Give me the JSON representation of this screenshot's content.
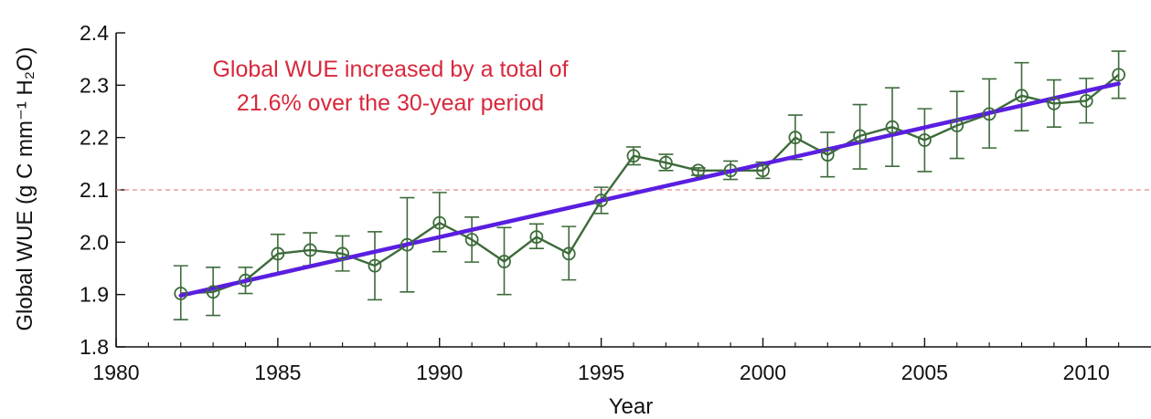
{
  "chart_data": {
    "type": "line",
    "title": "",
    "xlabel": "Year",
    "ylabel": "Global WUE (g C mm⁻¹ H₂O)",
    "xlim": [
      1980,
      2012
    ],
    "ylim": [
      1.8,
      2.4
    ],
    "xticks": [
      1980,
      1985,
      1990,
      1995,
      2000,
      2005,
      2010
    ],
    "yticks": [
      "1.8",
      "1.9",
      "2.0",
      "2.1",
      "2.2",
      "2.3",
      "2.4"
    ],
    "grid": false,
    "reference_line": {
      "y": 2.1,
      "style": "dashed",
      "color": "#e8898f"
    },
    "annotation": [
      "Global WUE increased by a total of",
      "21.6% over the 30-year period"
    ],
    "annotation_color": "#d8283c",
    "series": [
      {
        "style": "line-with-open-circle-markers-and-error-bars",
        "color": "#3d6b3a",
        "x": [
          1982,
          1983,
          1984,
          1985,
          1986,
          1987,
          1988,
          1989,
          1990,
          1991,
          1992,
          1993,
          1994,
          1995,
          1996,
          1997,
          1998,
          1999,
          2000,
          2001,
          2002,
          2003,
          2004,
          2005,
          2006,
          2007,
          2008,
          2009,
          2010,
          2011
        ],
        "y": [
          1.902,
          1.905,
          1.927,
          1.978,
          1.985,
          1.978,
          1.955,
          1.995,
          2.037,
          2.005,
          1.963,
          2.01,
          1.978,
          2.08,
          2.165,
          2.152,
          2.137,
          2.137,
          2.137,
          2.2,
          2.167,
          2.203,
          2.22,
          2.195,
          2.223,
          2.245,
          2.28,
          2.265,
          2.27,
          2.32
        ],
        "err_low": [
          1.852,
          1.86,
          1.902,
          1.94,
          1.955,
          1.945,
          1.89,
          1.905,
          1.982,
          1.962,
          1.9,
          1.988,
          1.928,
          2.055,
          2.148,
          2.137,
          2.128,
          2.12,
          2.122,
          2.158,
          2.125,
          2.14,
          2.145,
          2.135,
          2.16,
          2.18,
          2.213,
          2.22,
          2.228,
          2.275
        ],
        "err_high": [
          1.955,
          1.952,
          1.952,
          2.015,
          2.018,
          2.012,
          2.02,
          2.085,
          2.095,
          2.048,
          2.028,
          2.035,
          2.03,
          2.105,
          2.182,
          2.168,
          2.142,
          2.155,
          2.153,
          2.243,
          2.21,
          2.263,
          2.295,
          2.255,
          2.288,
          2.312,
          2.343,
          2.31,
          2.313,
          2.365
        ]
      },
      {
        "style": "trend-line",
        "color": "#5a1ee0",
        "x": [
          1982,
          2011
        ],
        "y": [
          1.898,
          2.303
        ]
      }
    ]
  }
}
